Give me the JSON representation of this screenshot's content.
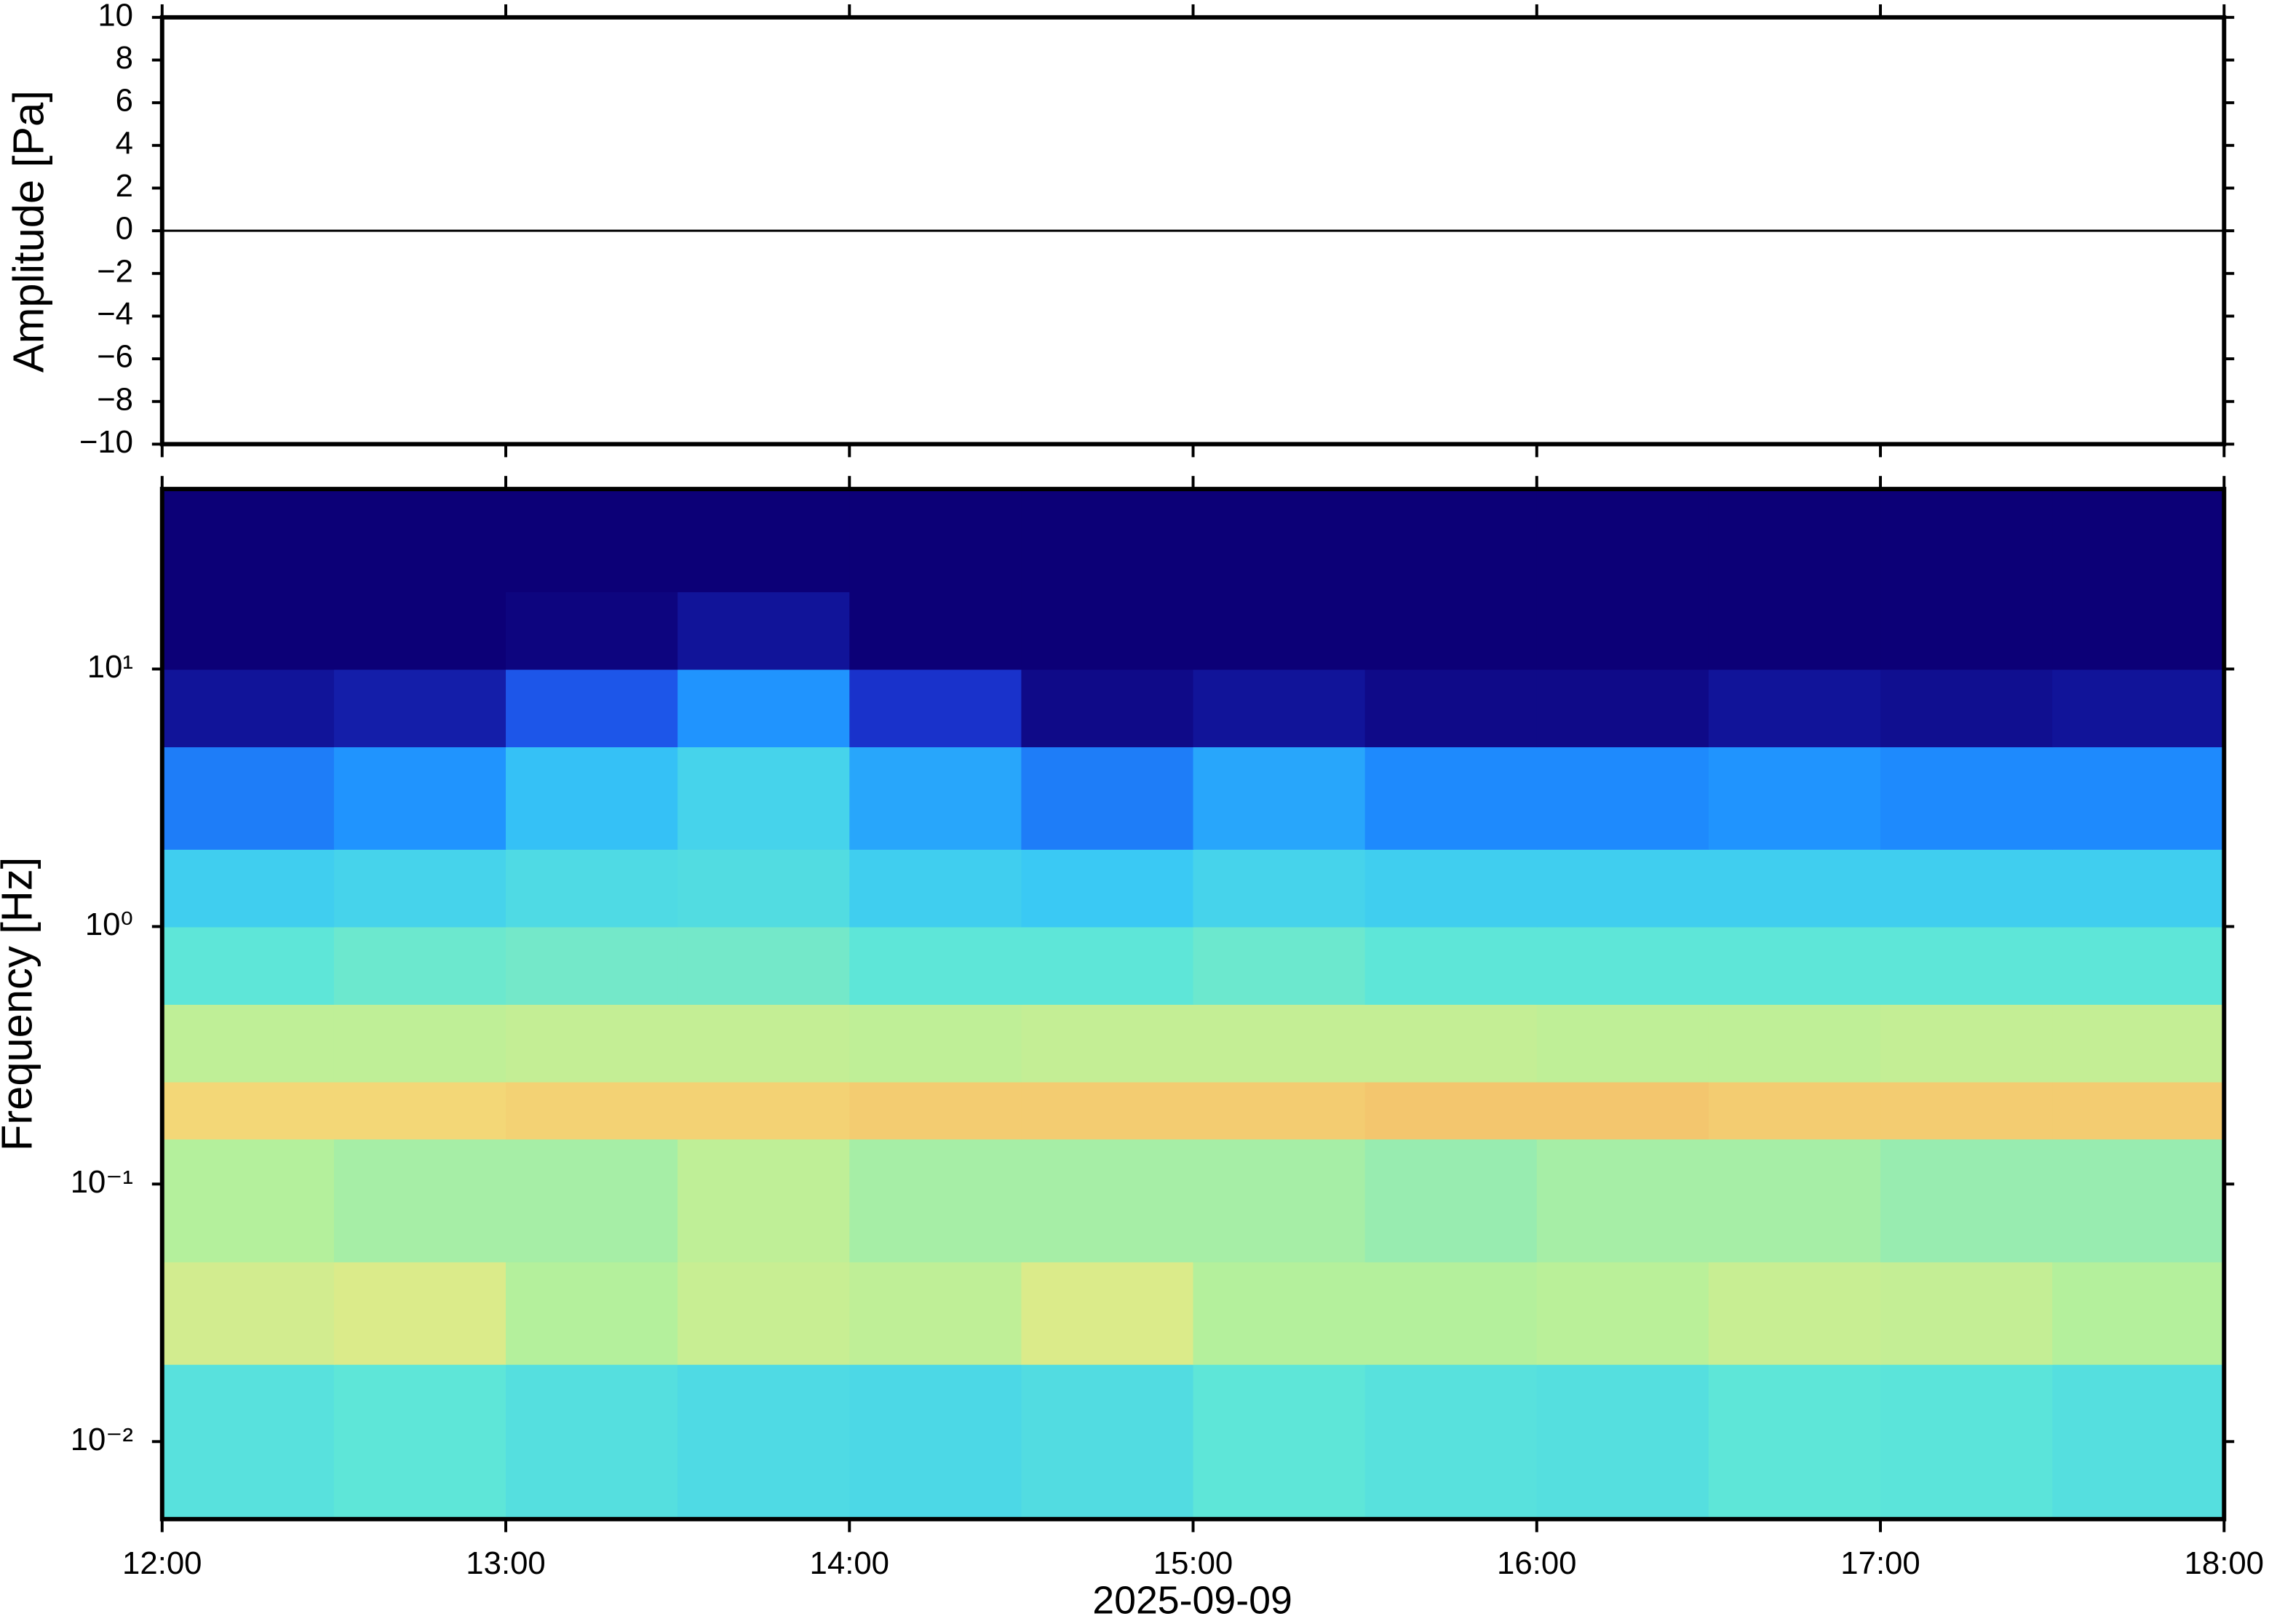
{
  "chart_data": [
    {
      "type": "line",
      "ylabel": "Amplitude [Pa]",
      "xlim": [
        12,
        18
      ],
      "xticks": [
        12,
        13,
        14,
        15,
        16,
        17,
        18
      ],
      "ylim": [
        -10,
        10
      ],
      "yticks": [
        {
          "value": -10,
          "label": "−10"
        },
        {
          "value": -8,
          "label": "−8"
        },
        {
          "value": -6,
          "label": "−6"
        },
        {
          "value": -4,
          "label": "−4"
        },
        {
          "value": -2,
          "label": "−2"
        },
        0,
        2,
        4,
        6,
        8,
        10
      ],
      "series": [
        {
          "color": "#000000",
          "x": [
            12,
            13,
            14,
            15,
            16,
            17,
            18
          ],
          "values": [
            0,
            0,
            0,
            0,
            0,
            0,
            0
          ]
        }
      ]
    },
    {
      "type": "heatmap",
      "ylabel": "Frequency [Hz]",
      "xlabel": "2025-09-09",
      "log_y": true,
      "xlim": [
        12,
        18
      ],
      "xticks": [
        {
          "value": 12,
          "label": "12:00"
        },
        {
          "value": 13,
          "label": "13:00"
        },
        {
          "value": 14,
          "label": "14:00"
        },
        {
          "value": 15,
          "label": "15:00"
        },
        {
          "value": 16,
          "label": "16:00"
        },
        {
          "value": 17,
          "label": "17:00"
        },
        {
          "value": 18,
          "label": "18:00"
        }
      ],
      "ylim": [
        0.005,
        50
      ],
      "yticks": [
        {
          "value": 0.01,
          "label": "10⁻²"
        },
        {
          "value": 0.1,
          "label": "10⁻¹"
        },
        {
          "value": 1,
          "label": "10⁰"
        },
        {
          "value": 10,
          "label": "10¹"
        }
      ],
      "x_edges": [
        12,
        12.5,
        13,
        13.5,
        14,
        14.5,
        15,
        15.5,
        16,
        16.5,
        17,
        17.5,
        18
      ],
      "y_edges": [
        0.005,
        0.02,
        0.05,
        0.15,
        0.25,
        0.5,
        1,
        2,
        5,
        10,
        20,
        50
      ],
      "colormap": [
        "#0c0077",
        "#1c3fe0",
        "#1e90ff",
        "#38c8f5",
        "#5ee6d8",
        "#b8f09a",
        "#f2e880",
        "#f5a25a",
        "#e04030"
      ],
      "values": [
        [
          0.48,
          0.5,
          0.47,
          0.45,
          0.44,
          0.46,
          0.5,
          0.48,
          0.47,
          0.5,
          0.49,
          0.47
        ],
        [
          0.68,
          0.7,
          0.62,
          0.66,
          0.64,
          0.7,
          0.62,
          0.62,
          0.63,
          0.66,
          0.65,
          0.62
        ],
        [
          0.62,
          0.6,
          0.6,
          0.64,
          0.6,
          0.6,
          0.6,
          0.58,
          0.6,
          0.6,
          0.58,
          0.58
        ],
        [
          0.78,
          0.78,
          0.79,
          0.79,
          0.8,
          0.8,
          0.8,
          0.81,
          0.81,
          0.8,
          0.8,
          0.8
        ],
        [
          0.64,
          0.64,
          0.65,
          0.65,
          0.64,
          0.65,
          0.65,
          0.65,
          0.64,
          0.64,
          0.65,
          0.65
        ],
        [
          0.5,
          0.52,
          0.53,
          0.53,
          0.5,
          0.5,
          0.52,
          0.5,
          0.5,
          0.5,
          0.5,
          0.5
        ],
        [
          0.4,
          0.42,
          0.45,
          0.46,
          0.4,
          0.38,
          0.42,
          0.4,
          0.4,
          0.4,
          0.4,
          0.4
        ],
        [
          0.22,
          0.26,
          0.36,
          0.42,
          0.3,
          0.22,
          0.3,
          0.24,
          0.24,
          0.26,
          0.24,
          0.24
        ],
        [
          0.04,
          0.06,
          0.16,
          0.26,
          0.1,
          0.02,
          0.04,
          0.02,
          0.02,
          0.04,
          0.03,
          0.04
        ],
        [
          0,
          0,
          0.01,
          0.04,
          0,
          0,
          0,
          0,
          0,
          0,
          0,
          0
        ],
        [
          0,
          0,
          0,
          0,
          0,
          0,
          0,
          0,
          0,
          0,
          0,
          0
        ]
      ]
    }
  ]
}
